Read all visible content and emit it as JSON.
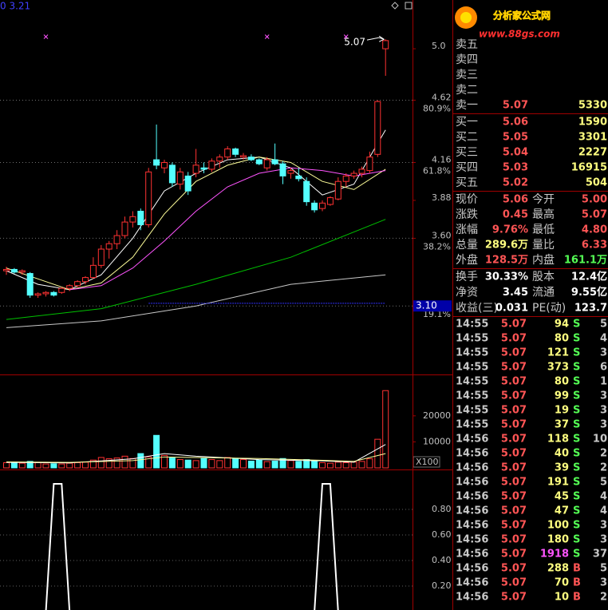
{
  "top_left": "0  3.21",
  "watermark": {
    "title": "分析家公式网",
    "url": "www.88gs.com"
  },
  "chart_data": [
    {
      "type": "candlestick",
      "open": [
        3.36,
        3.37,
        3.35,
        3.34,
        3.18,
        3.19,
        3.2,
        3.2,
        3.23,
        3.25,
        3.28,
        3.31,
        3.4,
        3.52,
        3.56,
        3.62,
        3.72,
        3.8,
        3.7,
        4.18,
        4.12,
        4.14,
        4.0,
        4.06,
        4.08,
        4.12,
        4.11,
        4.17,
        4.2,
        4.26,
        4.2,
        4.2,
        4.18,
        4.12,
        4.18,
        4.15,
        4.08,
        4.06,
        4.02,
        3.86,
        3.82,
        3.85,
        3.89,
        4.02,
        4.06,
        4.08,
        4.1,
        4.22,
        5.0
      ],
      "high": [
        3.39,
        3.38,
        3.37,
        3.35,
        3.2,
        3.21,
        3.21,
        3.24,
        3.26,
        3.29,
        3.32,
        3.46,
        3.55,
        3.58,
        3.66,
        3.76,
        3.8,
        3.82,
        4.12,
        4.44,
        4.18,
        4.16,
        4.12,
        4.09,
        4.26,
        4.16,
        4.19,
        4.22,
        4.28,
        4.27,
        4.23,
        4.22,
        4.19,
        4.2,
        4.3,
        4.17,
        4.12,
        4.12,
        4.05,
        3.88,
        3.88,
        3.91,
        4.05,
        4.08,
        4.1,
        4.13,
        4.24,
        4.62,
        5.07
      ],
      "low": [
        3.33,
        3.34,
        3.33,
        3.16,
        3.16,
        3.17,
        3.17,
        3.19,
        3.21,
        3.24,
        3.26,
        3.3,
        3.38,
        3.45,
        3.52,
        3.6,
        3.68,
        3.66,
        3.68,
        4.11,
        4.08,
        3.98,
        3.96,
        3.92,
        4.05,
        4.08,
        4.09,
        4.12,
        4.18,
        4.2,
        4.18,
        4.17,
        4.14,
        4.1,
        4.14,
        4.0,
        4.04,
        4.02,
        3.84,
        3.79,
        3.8,
        3.84,
        3.88,
        3.98,
        4.04,
        4.05,
        4.08,
        4.2,
        4.8
      ],
      "close": [
        3.37,
        3.35,
        3.36,
        3.18,
        3.19,
        3.2,
        3.18,
        3.23,
        3.25,
        3.28,
        3.31,
        3.4,
        3.52,
        3.56,
        3.62,
        3.72,
        3.76,
        3.7,
        4.09,
        4.14,
        4.16,
        4.01,
        4.09,
        3.95,
        4.14,
        4.11,
        4.17,
        4.2,
        4.26,
        4.22,
        4.21,
        4.18,
        4.15,
        4.18,
        4.15,
        4.06,
        4.1,
        4.04,
        3.87,
        3.81,
        3.86,
        3.9,
        4.02,
        4.06,
        4.08,
        4.11,
        4.2,
        4.61,
        5.06
      ],
      "up_color": "#ff3232",
      "down_color": "#54ffff",
      "ylim": [
        2.6,
        5.36
      ],
      "yticks": [
        {
          "value": 5.0,
          "label": "5.0"
        },
        4.62,
        4.16,
        3.88,
        {
          "value": 3.6,
          "label": "3.60"
        }
      ],
      "fib_lines": [
        4.62,
        4.16,
        3.6,
        3.1
      ],
      "fib_labels": [
        "80.9%",
        "61.8%",
        "38.2%",
        "19.1%"
      ],
      "cursor_price": {
        "value": 3.1,
        "label": "3.10"
      },
      "max_label": 5.07,
      "signal_x": [
        5,
        33,
        43
      ],
      "lines": [
        {
          "color": "#ffffff",
          "x": [
            0,
            4,
            8,
            12,
            16,
            20,
            24,
            28,
            32,
            36,
            40,
            44,
            48
          ],
          "values": [
            3.36,
            3.26,
            3.22,
            3.33,
            3.6,
            3.95,
            4.08,
            4.18,
            4.2,
            4.12,
            3.92,
            4.0,
            4.4
          ]
        },
        {
          "color": "#ffff9a",
          "x": [
            0,
            4,
            8,
            12,
            16,
            20,
            24,
            28,
            32,
            36,
            40,
            44,
            48
          ],
          "values": [
            3.38,
            3.3,
            3.22,
            3.27,
            3.46,
            3.78,
            4.02,
            4.14,
            4.2,
            4.16,
            4.02,
            3.96,
            4.11
          ]
        },
        {
          "color": "#ff54ff",
          "x": [
            8,
            12,
            16,
            20,
            24,
            28,
            32,
            36,
            40,
            44,
            48
          ],
          "values": [
            3.22,
            3.25,
            3.38,
            3.58,
            3.8,
            3.98,
            4.08,
            4.12,
            4.1,
            4.06,
            4.1
          ]
        },
        {
          "color": "#00c000",
          "x": [
            0,
            12,
            24,
            36,
            48
          ],
          "values": [
            3.0,
            3.08,
            3.26,
            3.46,
            3.74
          ]
        },
        {
          "color": "#c8c8c8",
          "x": [
            0,
            12,
            24,
            36,
            48
          ],
          "values": [
            2.94,
            2.99,
            3.1,
            3.26,
            3.33
          ]
        },
        {
          "color": "#3030ff",
          "x": [
            18,
            48
          ],
          "values": [
            3.12,
            3.12
          ]
        }
      ]
    },
    {
      "type": "bar",
      "values": [
        2000,
        2200,
        1800,
        2500,
        2000,
        1500,
        1600,
        1500,
        1800,
        2000,
        2200,
        3000,
        4000,
        3500,
        3800,
        4500,
        3600,
        5500,
        4200,
        12500,
        4800,
        3800,
        3200,
        3000,
        2800,
        3600,
        3200,
        2800,
        4000,
        3500,
        3200,
        2600,
        3000,
        2400,
        2600,
        3600,
        2800,
        2500,
        3200,
        2600,
        2000,
        1800,
        2200,
        2000,
        2200,
        2500,
        3500,
        11000,
        29700
      ],
      "ylim": [
        0,
        35600
      ],
      "yticks": [
        10000,
        20000
      ],
      "unit_label": "X100",
      "lines": [
        {
          "color": "#ffffff",
          "x": [
            0,
            8,
            16,
            20,
            24,
            32,
            40,
            44,
            48
          ],
          "values": [
            2100,
            1900,
            3500,
            5500,
            4500,
            3200,
            2700,
            2200,
            9000
          ]
        },
        {
          "color": "#ffff9a",
          "x": [
            0,
            8,
            16,
            20,
            24,
            32,
            40,
            44,
            48
          ],
          "values": [
            2300,
            2100,
            2800,
            4200,
            4000,
            3600,
            2900,
            2500,
            5500
          ]
        }
      ]
    },
    {
      "type": "line",
      "color": "#ffffff",
      "values": [
        0,
        0,
        0,
        0,
        0,
        0,
        1,
        1,
        0,
        0,
        0,
        0,
        0,
        0,
        0,
        0,
        0,
        0,
        0,
        0,
        0,
        0,
        0,
        0,
        0,
        0,
        0,
        0,
        0,
        0,
        0,
        0,
        0,
        0,
        0,
        0,
        0,
        0,
        0,
        0,
        1,
        1,
        0,
        0,
        0,
        0,
        0,
        0,
        0
      ],
      "ylim": [
        0,
        1.1
      ],
      "yticks": [
        {
          "value": 0.8,
          "label": "0.80"
        },
        {
          "value": 0.6,
          "label": "0.60"
        },
        {
          "value": 0.4,
          "label": "0.40"
        },
        {
          "value": 0.2,
          "label": "0.20"
        }
      ],
      "grid": true
    }
  ],
  "order_book": {
    "asks": [
      {
        "label": "卖五"
      },
      {
        "label": "卖四"
      },
      {
        "label": "卖三"
      },
      {
        "label": "卖二"
      },
      {
        "label": "卖一",
        "price": 5.07,
        "volume": 5330
      }
    ],
    "bids": [
      {
        "label": "买一",
        "price": 5.06,
        "volume": 1590
      },
      {
        "label": "买二",
        "price": 5.05,
        "volume": 3301
      },
      {
        "label": "买三",
        "price": 5.04,
        "volume": 2227
      },
      {
        "label": "买四",
        "price": 5.03,
        "volume": 16915
      },
      {
        "label": "买五",
        "price": 5.02,
        "volume": 504
      }
    ]
  },
  "stats": [
    [
      "现价",
      "5.06",
      "今开",
      "5.00"
    ],
    [
      "涨跌",
      "0.45",
      "最高",
      "5.07"
    ],
    [
      "涨幅",
      "9.76%",
      "最低",
      "4.80"
    ],
    [
      "总量",
      "289.6万",
      "量比",
      "6.33"
    ],
    [
      "外盘",
      "128.5万",
      "内盘",
      "161.1万"
    ],
    [
      "换手",
      "30.33%",
      "股本",
      "12.4亿"
    ],
    [
      "净资",
      "3.45",
      "流通",
      "9.55亿"
    ],
    [
      "收益(三)",
      "0.031",
      "PE(动)",
      "123.7"
    ]
  ],
  "trades": [
    [
      "14:55",
      5.07,
      94,
      "S",
      5
    ],
    [
      "14:55",
      5.07,
      80,
      "S",
      4
    ],
    [
      "14:55",
      5.07,
      121,
      "S",
      3
    ],
    [
      "14:55",
      5.07,
      373,
      "S",
      6
    ],
    [
      "14:55",
      5.07,
      80,
      "S",
      1
    ],
    [
      "14:55",
      5.07,
      99,
      "S",
      3
    ],
    [
      "14:55",
      5.07,
      19,
      "S",
      3
    ],
    [
      "14:55",
      5.07,
      37,
      "S",
      3
    ],
    [
      "14:56",
      5.07,
      118,
      "S",
      10
    ],
    [
      "14:56",
      5.07,
      40,
      "S",
      2
    ],
    [
      "14:56",
      5.07,
      39,
      "S",
      2
    ],
    [
      "14:56",
      5.07,
      191,
      "S",
      5
    ],
    [
      "14:56",
      5.07,
      45,
      "S",
      4
    ],
    [
      "14:56",
      5.07,
      47,
      "S",
      4
    ],
    [
      "14:56",
      5.07,
      100,
      "S",
      3
    ],
    [
      "14:56",
      5.07,
      180,
      "S",
      3
    ],
    [
      "14:56",
      5.07,
      1918,
      "S",
      37
    ],
    [
      "14:56",
      5.07,
      288,
      "B",
      5
    ],
    [
      "14:56",
      5.07,
      70,
      "B",
      3
    ],
    [
      "14:56",
      5.07,
      10,
      "B",
      2
    ]
  ]
}
